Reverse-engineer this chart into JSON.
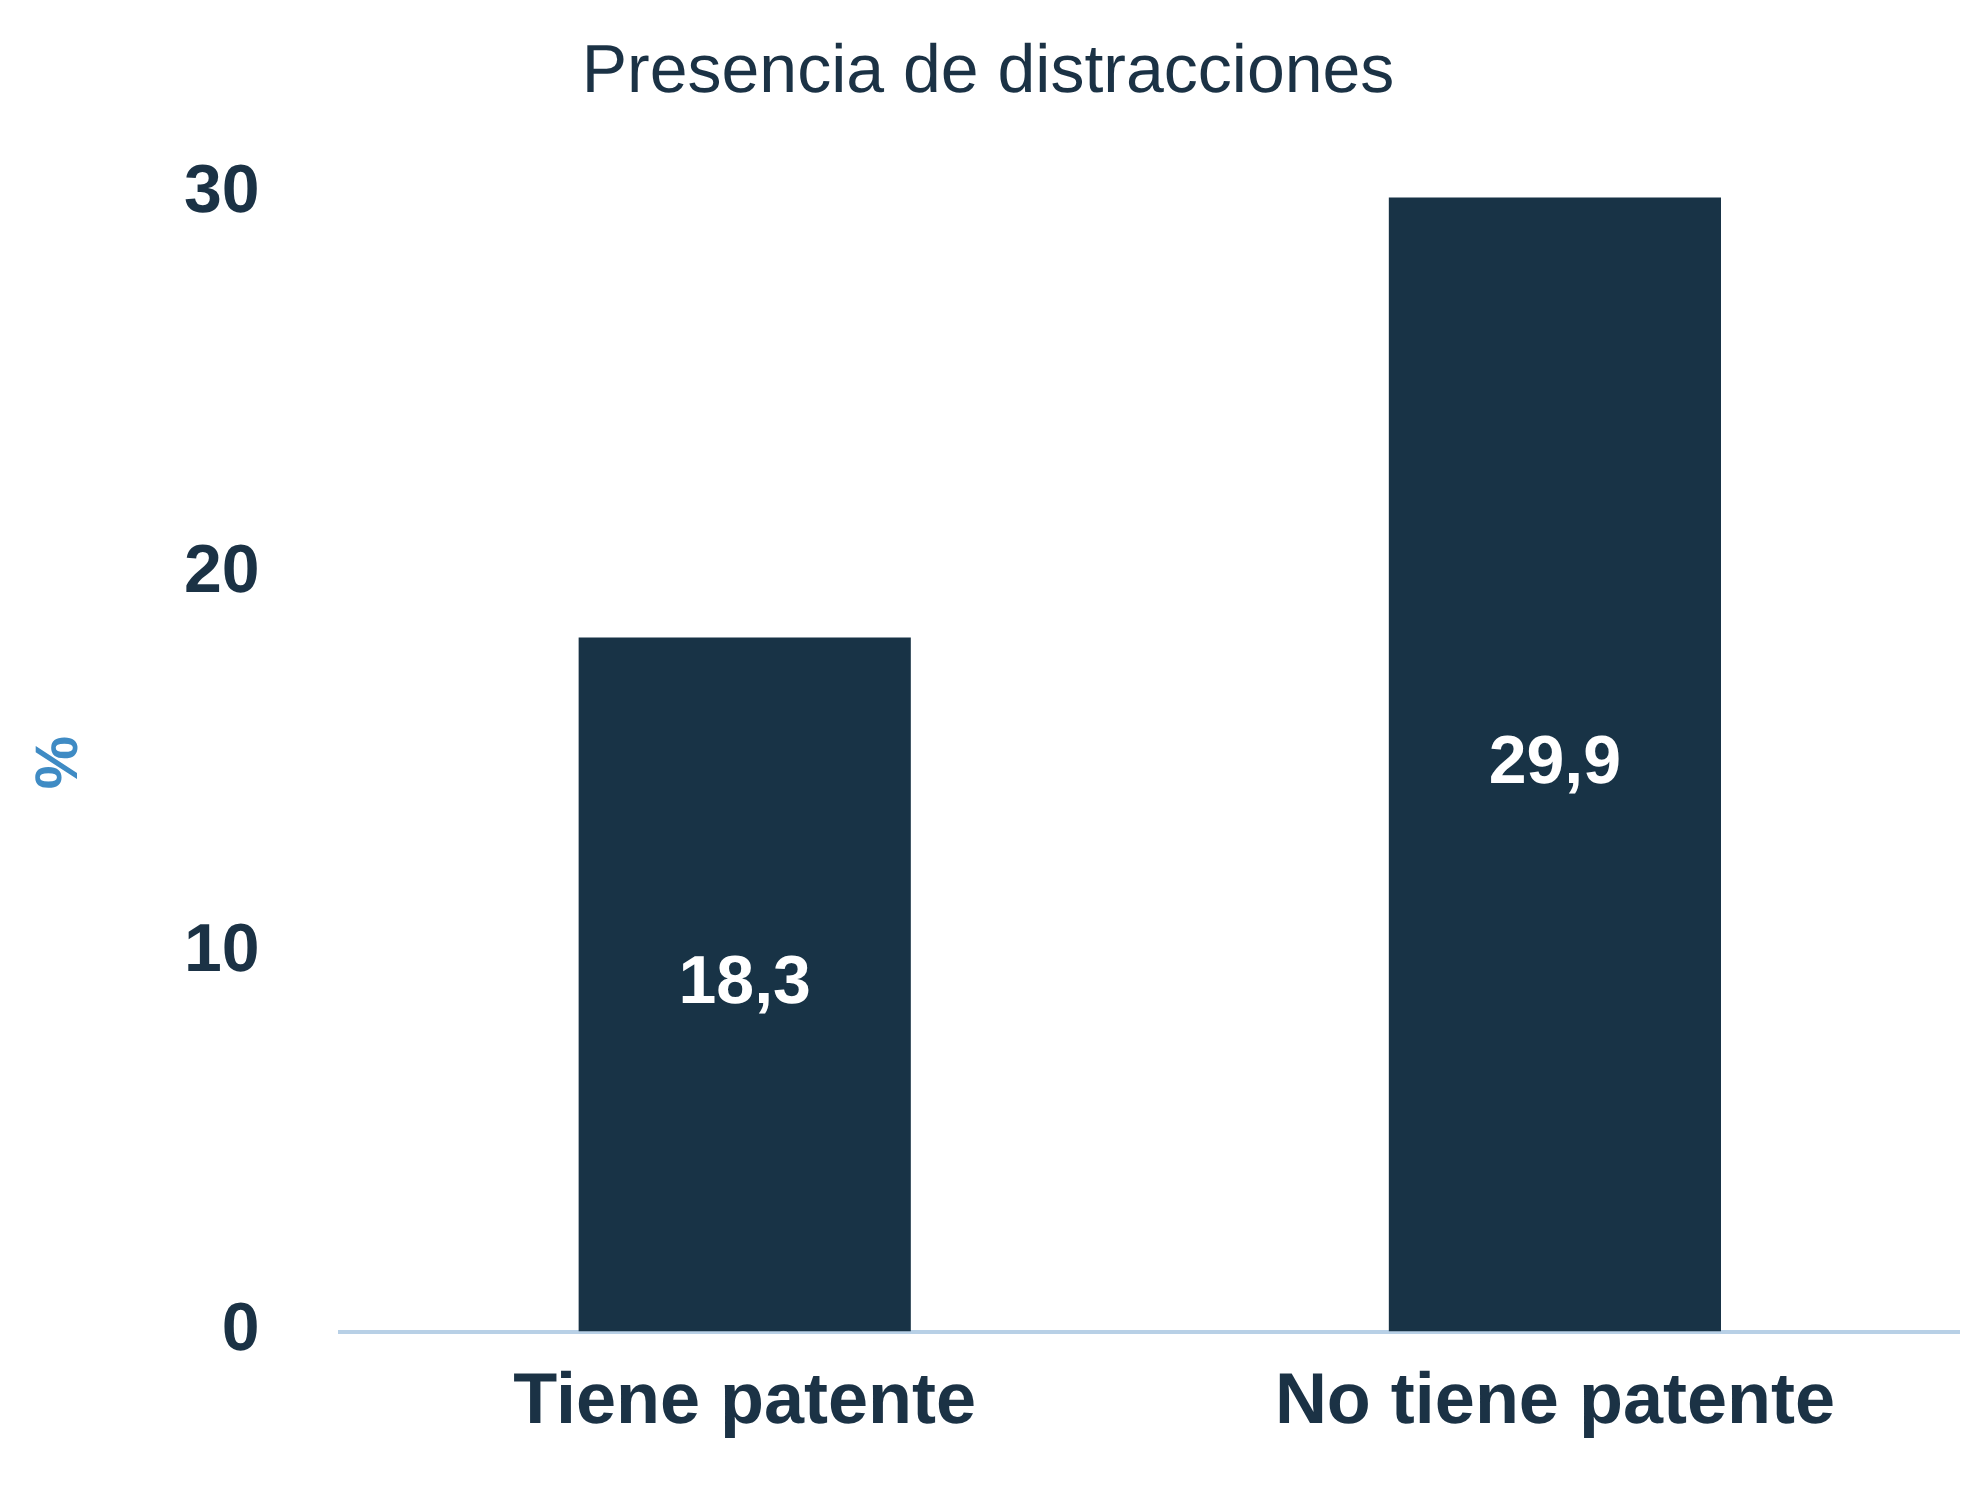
{
  "chart_data": {
    "type": "bar",
    "title": "Presencia de distracciones",
    "ylabel": "%",
    "categories": [
      "Tiene patente",
      "No tiene patente"
    ],
    "values": [
      18.3,
      29.9
    ],
    "value_labels": [
      "18,3",
      "29,9"
    ],
    "color": "#183346",
    "ylim": [
      0,
      30
    ],
    "yticks": [
      0,
      10,
      20,
      30
    ],
    "grid": false,
    "legend": false
  }
}
